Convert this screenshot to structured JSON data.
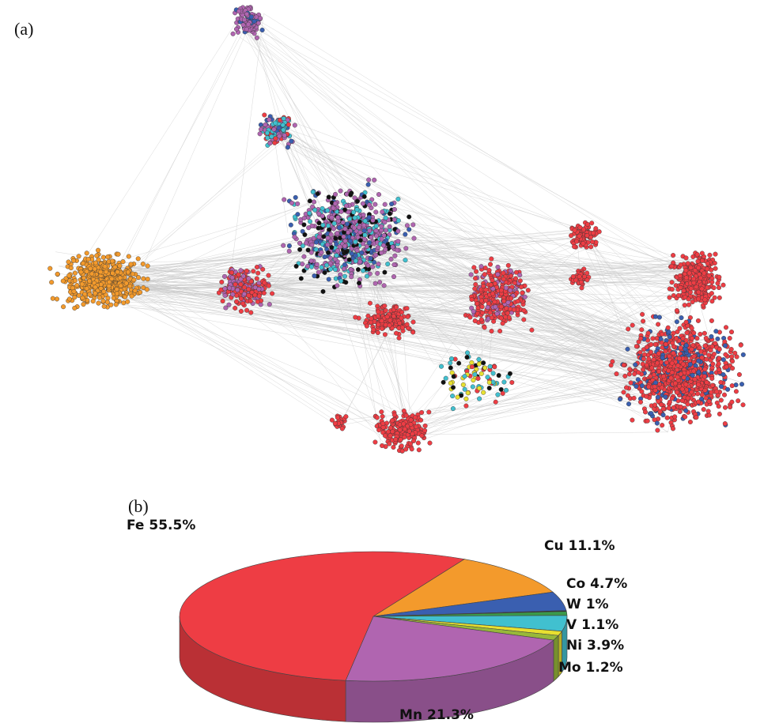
{
  "panel_a": {
    "label": "(a)"
  },
  "chart_data": {
    "type": "pie",
    "title": "(b)",
    "categories": [
      "Cu",
      "Co",
      null,
      "W",
      "Ni",
      "V",
      "Mo",
      "Mn",
      "Fe"
    ],
    "values": [
      11.1,
      4.7,
      0.2,
      1,
      3.9,
      1.1,
      1.2,
      21.3,
      55.5
    ],
    "value_labels": [
      "11.1%",
      "4.7%",
      null,
      "1%",
      "3.9%",
      "1.1%",
      "1.2%",
      "21.3%",
      "55.5%"
    ],
    "colors": [
      "#f39a2c",
      "#3a5fb0",
      "#111111",
      "#3a9a4a",
      "#41c0cf",
      "#e8e030",
      "#98b83a",
      "#b065b0",
      "#ee3d44"
    ]
  }
}
